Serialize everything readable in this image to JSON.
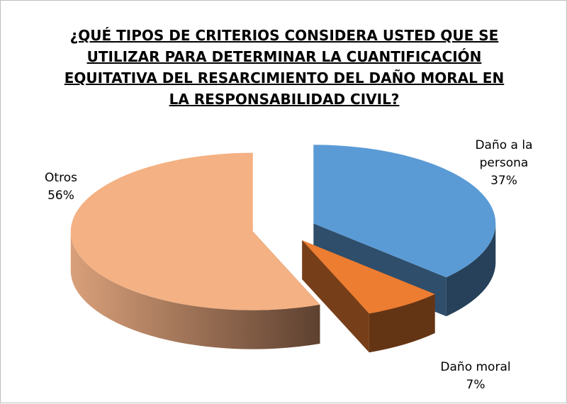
{
  "chart_data": {
    "type": "pie3d",
    "title": "¿QUÉ TIPOS DE CRITERIOS CONSIDERA USTED QUE SE UTILIZAR PARA DETERMINAR LA CUANTIFICACIÓN EQUITATIVA DEL RESARCIMIENTO DEL DAÑO MORAL EN LA RESPONSABILIDAD CIVIL?",
    "categories": [
      "Daño a la persona",
      "Daño moral",
      "Otros"
    ],
    "values": [
      37,
      7,
      56
    ],
    "value_labels": [
      "37%",
      "7%",
      "56%"
    ],
    "colors": [
      "#5b9bd5",
      "#ed7d31",
      "#f4b183"
    ]
  }
}
